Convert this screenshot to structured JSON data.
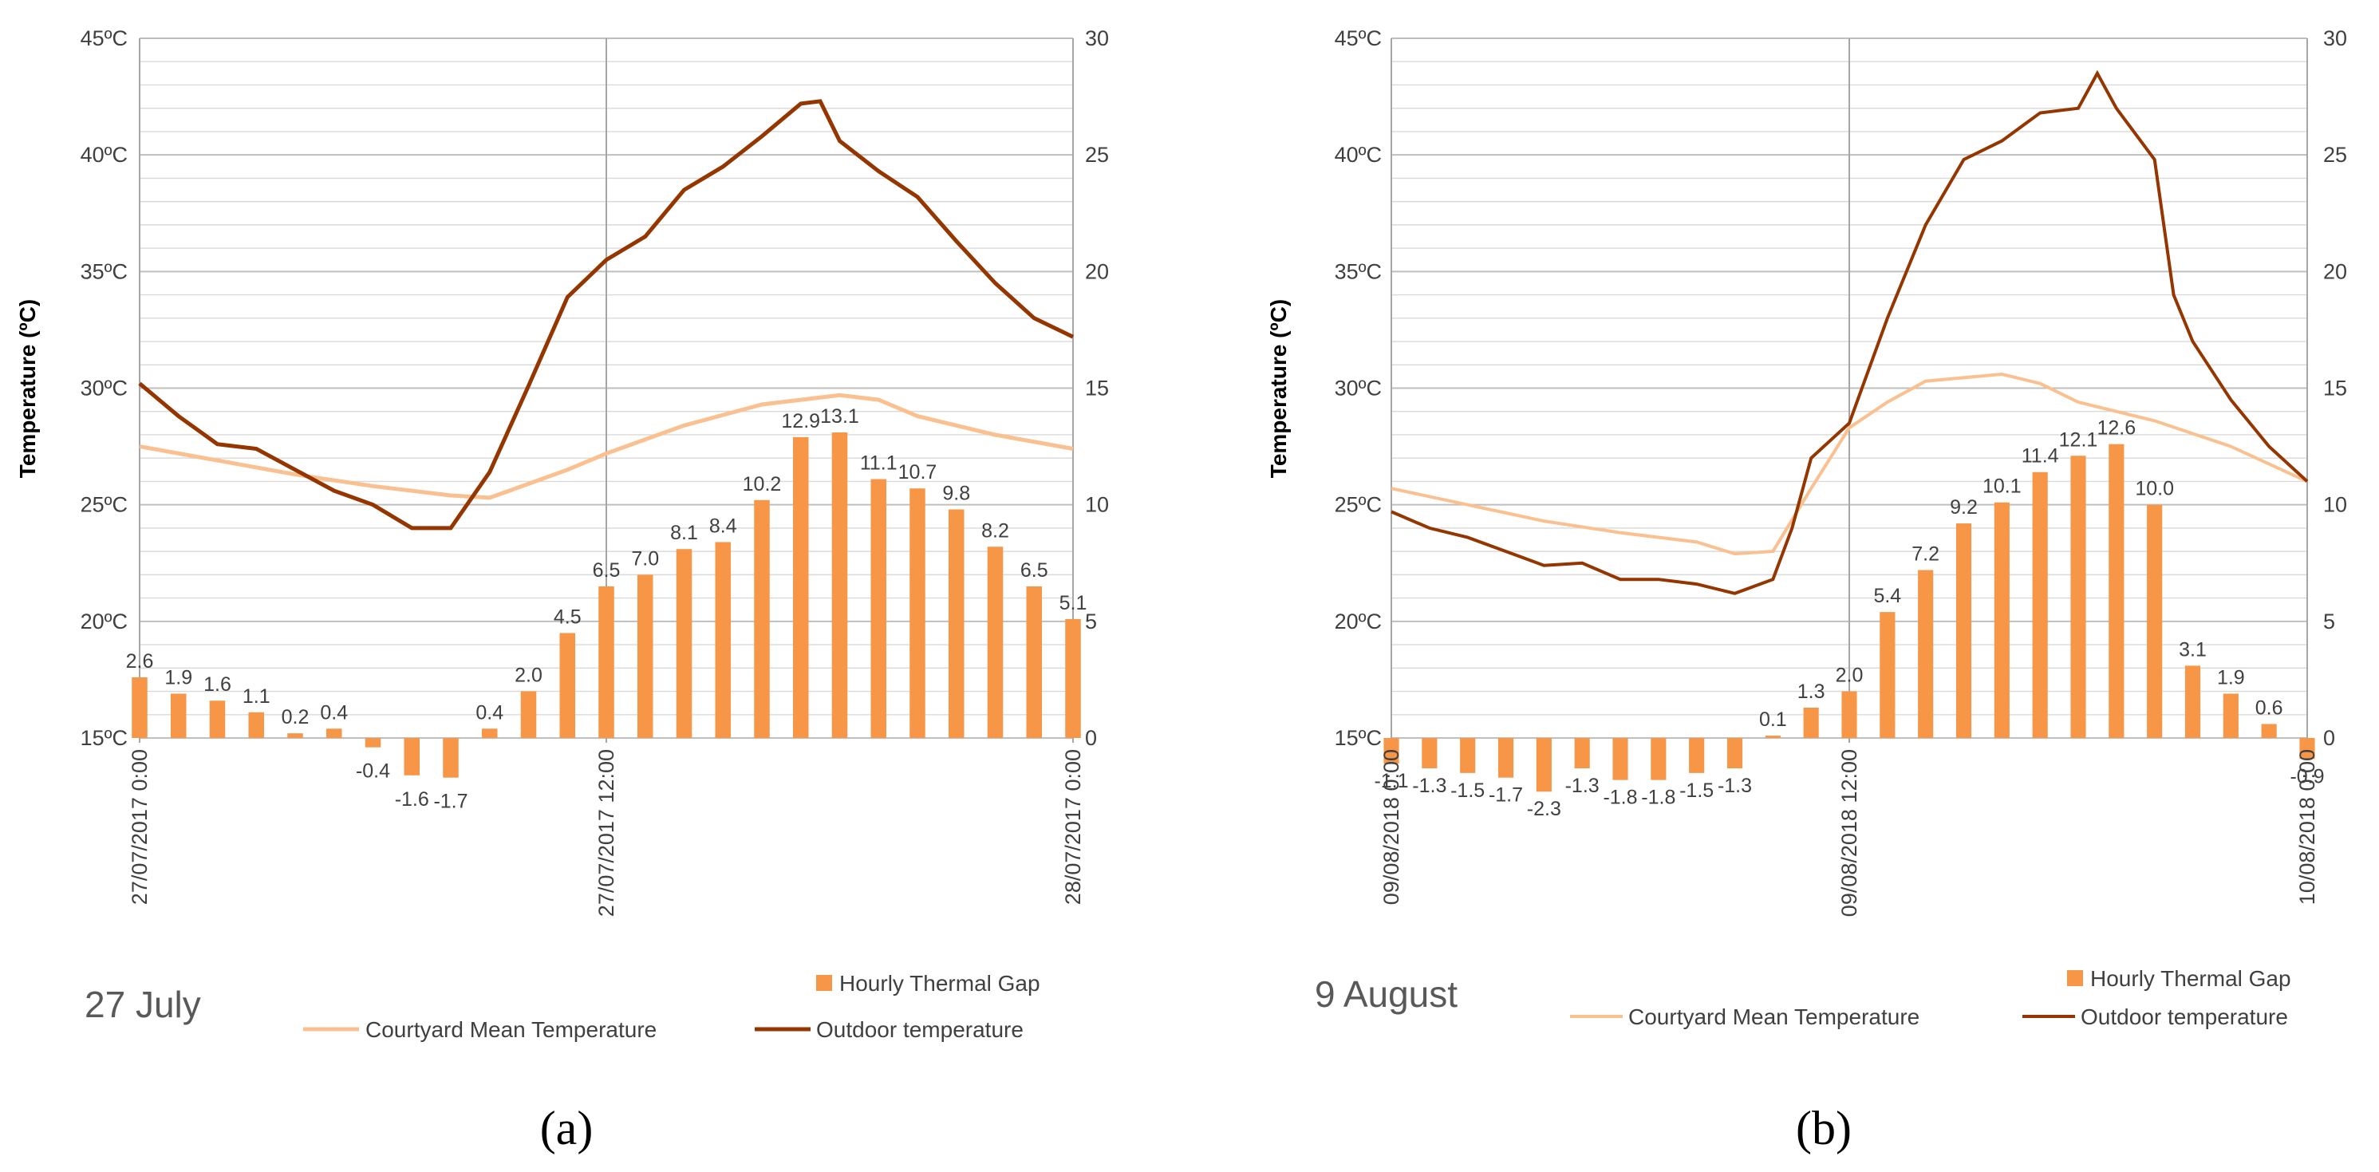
{
  "figure": {
    "captions": [
      "(a)",
      "(b)"
    ]
  },
  "legend": {
    "gap_label": "Hourly Thermal Gap",
    "courtyard_label": "Courtyard Mean Temperature",
    "outdoor_label": "Outdoor temperature",
    "gap_color": "#f79646",
    "courtyard_color": "#fac090",
    "outdoor_color": "#953500"
  },
  "chart_data": [
    {
      "type": "bar+line",
      "subtitle": "27 July",
      "ylabel": "Temperature (ºC)",
      "ylim": [
        15,
        45
      ],
      "y_ticks": [
        "15ºC",
        "20ºC",
        "25ºC",
        "30ºC",
        "35ºC",
        "40ºC",
        "45ºC"
      ],
      "y2lim": [
        0,
        30
      ],
      "y2_ticks": [
        "0",
        "5",
        "10",
        "15",
        "20",
        "25",
        "30"
      ],
      "x_ticks": [
        "27/07/2017 0:00",
        "27/07/2017 12:00",
        "28/07/2017 0:00"
      ],
      "gap_values": [
        2.6,
        1.9,
        1.6,
        1.1,
        0.2,
        0.4,
        -0.4,
        -1.6,
        -1.7,
        0.4,
        2.0,
        4.5,
        6.5,
        7.0,
        8.1,
        8.4,
        10.2,
        12.9,
        13.1,
        11.1,
        10.7,
        9.8,
        8.2,
        6.5,
        5.1
      ],
      "gap_labels": [
        "2.6",
        "1.9",
        "1.6",
        "1.1",
        "0.2",
        "0.4",
        "-0.4",
        "-1.6",
        "-1.7",
        "0.4",
        "2.0",
        "4.5",
        "6.5",
        "7.0",
        "8.1",
        "8.4",
        "10.2",
        "12.9",
        "13.1",
        "11.1",
        "10.7",
        "9.8",
        "8.2",
        "6.5",
        "5.1"
      ],
      "gap_label_shown": [
        true,
        true,
        true,
        true,
        true,
        true,
        true,
        true,
        true,
        true,
        true,
        true,
        true,
        true,
        true,
        true,
        true,
        true,
        true,
        true,
        true,
        true,
        true,
        true,
        true
      ],
      "courtyard_series": {
        "x": [
          0,
          2,
          4,
          6,
          8,
          9,
          10,
          11,
          12,
          14,
          16,
          18,
          19,
          20,
          22,
          24
        ],
        "y": [
          27.5,
          26.9,
          26.3,
          25.8,
          25.4,
          25.3,
          25.9,
          26.5,
          27.2,
          28.4,
          29.3,
          29.7,
          29.5,
          28.8,
          28.0,
          27.4
        ]
      },
      "outdoor_series": {
        "x": [
          0,
          1,
          2,
          3,
          4,
          5,
          6,
          7,
          8,
          9,
          10,
          11,
          12,
          13,
          14,
          15,
          16,
          17,
          17.5,
          18,
          19,
          20,
          21,
          22,
          23,
          24
        ],
        "y": [
          30.2,
          28.8,
          27.6,
          27.4,
          26.5,
          25.6,
          25.0,
          24.0,
          24.0,
          26.4,
          30.1,
          33.9,
          35.5,
          36.5,
          38.5,
          39.5,
          40.8,
          42.2,
          42.3,
          40.6,
          39.3,
          38.2,
          36.3,
          34.5,
          33.0,
          32.2
        ]
      }
    },
    {
      "type": "bar+line",
      "subtitle": "9 August",
      "ylabel": "Temperature (ºC)",
      "ylim": [
        15,
        45
      ],
      "y_ticks": [
        "15ºC",
        "20ºC",
        "25ºC",
        "30ºC",
        "35ºC",
        "40ºC",
        "45ºC"
      ],
      "y2lim": [
        0,
        30
      ],
      "y2_ticks": [
        "0",
        "5",
        "10",
        "15",
        "20",
        "25",
        "30"
      ],
      "x_ticks": [
        "09/08/2018 0:00",
        "09/08/2018 12:00",
        "10/08/2018 0:00"
      ],
      "gap_values": [
        -1.1,
        -1.3,
        -1.5,
        -1.7,
        -2.3,
        -1.3,
        -1.8,
        -1.8,
        -1.5,
        -1.3,
        0.1,
        1.3,
        2.0,
        5.4,
        7.2,
        9.2,
        10.1,
        11.4,
        12.1,
        12.6,
        10.0,
        3.1,
        1.9,
        0.6,
        -0.9
      ],
      "gap_labels": [
        "-1.1",
        "-1.3",
        "-1.5",
        "-1.7",
        "-2.3",
        "-1.3",
        "-1.8",
        "-1.8",
        "-1.5",
        "-1.3",
        "0.1",
        "1.3",
        "2.0",
        "5.4",
        "7.2",
        "9.2",
        "10.1",
        "11.4",
        "12.1",
        "12.6",
        "10.0",
        "3.1",
        "1.9",
        "0.6",
        "-0.9"
      ],
      "gap_label_shown": [
        true,
        true,
        true,
        true,
        true,
        true,
        true,
        true,
        true,
        true,
        true,
        true,
        true,
        true,
        true,
        true,
        true,
        true,
        true,
        true,
        true,
        true,
        true,
        true,
        true
      ],
      "courtyard_series": {
        "x": [
          0,
          2,
          4,
          6,
          8,
          9,
          10,
          11,
          12,
          13,
          14,
          16,
          17,
          18,
          20,
          22,
          24
        ],
        "y": [
          25.7,
          25.0,
          24.3,
          23.8,
          23.4,
          22.9,
          23.0,
          25.7,
          28.3,
          29.4,
          30.3,
          30.6,
          30.2,
          29.4,
          28.6,
          27.5,
          26.0
        ]
      },
      "outdoor_series": {
        "x": [
          0,
          1,
          2,
          3,
          4,
          5,
          6,
          7,
          8,
          9,
          10,
          10.5,
          11,
          12,
          13,
          14,
          15,
          16,
          17,
          18,
          18.5,
          19,
          20,
          20.5,
          21,
          22,
          23,
          24
        ],
        "y": [
          24.7,
          24.0,
          23.6,
          23.0,
          22.4,
          22.5,
          21.8,
          21.8,
          21.6,
          21.2,
          21.8,
          24.0,
          27.0,
          28.5,
          33.0,
          37.0,
          39.8,
          40.6,
          41.8,
          42.0,
          43.5,
          42.0,
          39.8,
          34.0,
          32.0,
          29.5,
          27.5,
          26.0
        ]
      }
    }
  ]
}
